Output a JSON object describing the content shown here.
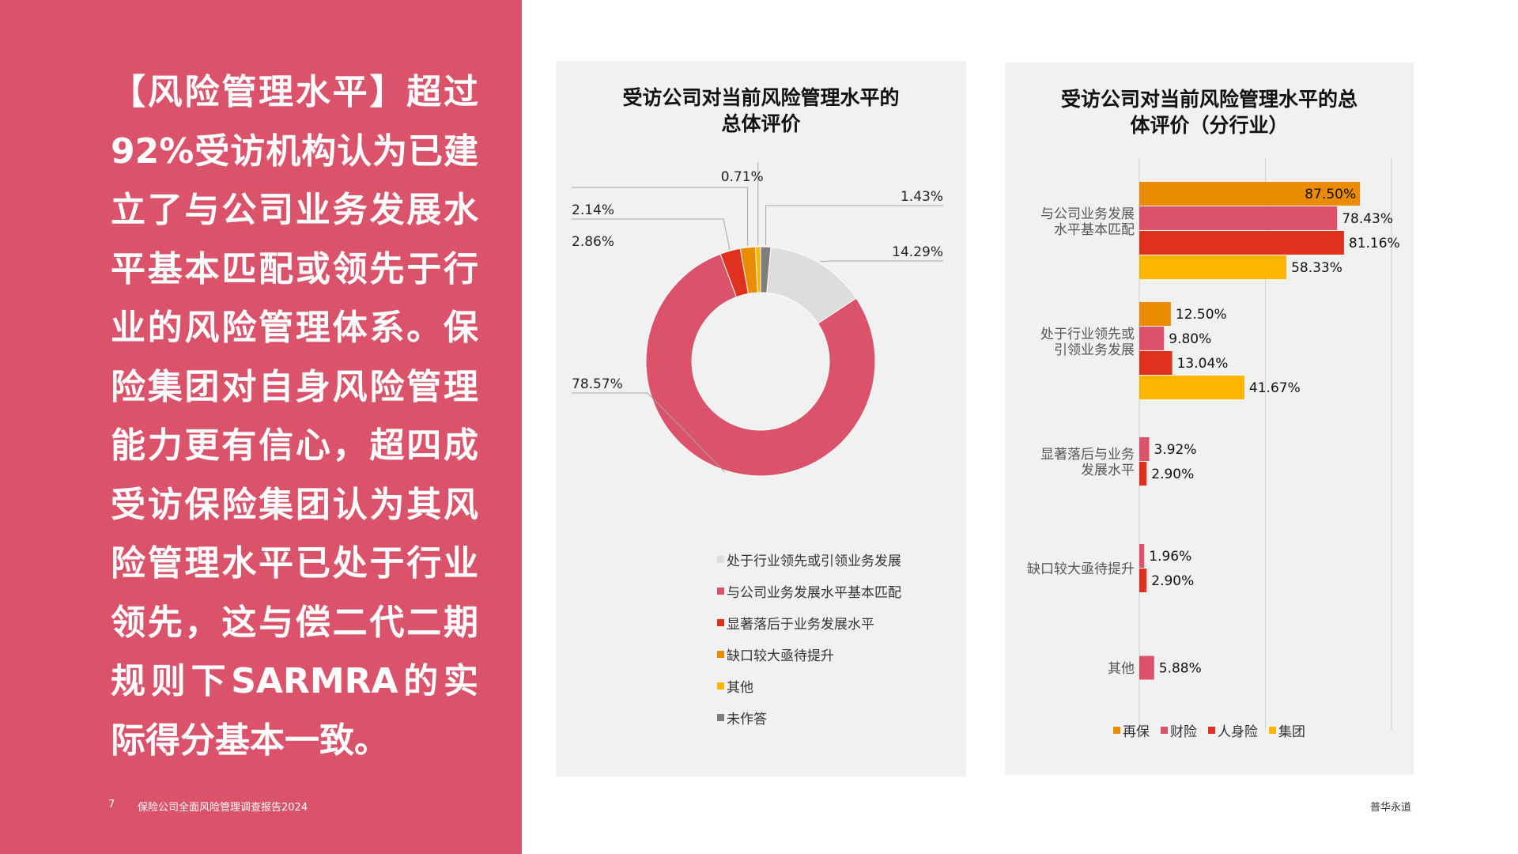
{
  "left": {
    "text": "【风险管理水平】超过92%受访机构认为已建立了与公司业务发展水平基本匹配或领先于行业的风险管理体系。保险集团对自身风险管理能力更有信心，超四成受访保险集团认为其风险管理水平已处于行业领先，这与偿二代二期规则下SARMRA的实际得分基本一致。"
  },
  "footer": {
    "page_number": "7",
    "report_title": "保险公司全面风险管理调查报告2024",
    "brand": "普华永道"
  },
  "colors": {
    "panel": "#db536a",
    "card": "#f1f1f1"
  },
  "chart_data": [
    {
      "type": "pie",
      "variant": "donut",
      "title": [
        "受访公司对当前风险管理水平的",
        "总体评价"
      ],
      "categories": [
        "处于行业领先或引领业务发展",
        "与公司业务发展水平基本匹配",
        "显著落后于业务发展水平",
        "缺口较大亟待提升",
        "其他",
        "未作答"
      ],
      "values": [
        14.29,
        78.57,
        2.86,
        2.14,
        0.71,
        1.43
      ],
      "labels": [
        "14.29%",
        "78.57%",
        "2.86%",
        "2.14%",
        "0.71%",
        "1.43%"
      ],
      "colors": [
        "#dddddd",
        "#db536a",
        "#e0301e",
        "#eb8c00",
        "#ffb600",
        "#7d7d7d"
      ],
      "legend_position": "bottom"
    },
    {
      "type": "bar",
      "orientation": "horizontal",
      "title": [
        "受访公司对当前风险管理水平的总",
        "体评价（分行业）"
      ],
      "categories": [
        {
          "label": [
            "与公司业务发展",
            "水平基本匹配"
          ],
          "values": [
            87.5,
            78.43,
            81.16,
            58.33
          ],
          "labels": [
            "87.50%",
            "78.43%",
            "81.16%",
            "58.33%"
          ]
        },
        {
          "label": [
            "处于行业领先或",
            "引领业务发展"
          ],
          "values": [
            12.5,
            9.8,
            13.04,
            41.67
          ],
          "labels": [
            "12.50%",
            "9.80%",
            "13.04%",
            "41.67%"
          ]
        },
        {
          "label": [
            "显著落后与业务",
            "发展水平"
          ],
          "values": [
            null,
            3.92,
            2.9,
            null
          ],
          "labels": [
            "",
            "3.92%",
            "2.90%",
            ""
          ]
        },
        {
          "label": [
            "缺口较大亟待提升"
          ],
          "values": [
            null,
            1.96,
            2.9,
            null
          ],
          "labels": [
            "",
            "1.96%",
            "2.90%",
            ""
          ]
        },
        {
          "label": [
            "其他"
          ],
          "values": [
            null,
            5.88,
            null,
            null
          ],
          "labels": [
            "",
            "5.88%",
            "",
            ""
          ]
        }
      ],
      "series": [
        {
          "name": "再保",
          "color": "#eb8c00"
        },
        {
          "name": "财险",
          "color": "#db536a"
        },
        {
          "name": "人身险",
          "color": "#e0301e"
        },
        {
          "name": "集团",
          "color": "#ffb600"
        }
      ],
      "xlim": [
        0,
        100
      ],
      "grid": true,
      "legend_position": "bottom"
    }
  ]
}
